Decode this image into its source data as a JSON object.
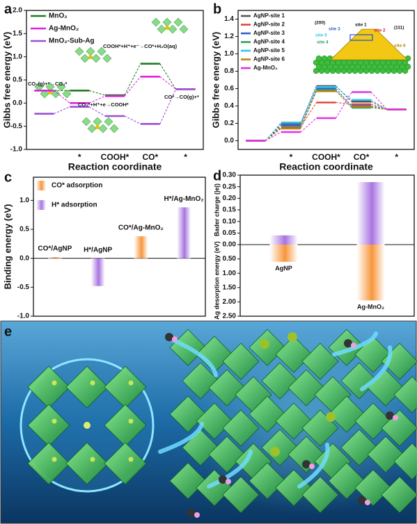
{
  "chart_data": [
    {
      "type": "step",
      "label": "a",
      "ylabel": "Gibbs free energy (eV)",
      "xlabel": "Reaction coordinate",
      "categories": [
        null,
        "*",
        "COOH*",
        "CO*",
        "*"
      ],
      "series": [
        {
          "name": "MnO₂",
          "color": "#1e7d1e",
          "values": [
            0.27,
            0.27,
            0.17,
            0.85,
            0.3
          ]
        },
        {
          "name": "Ag-MnO₂",
          "color": "#e020e0",
          "values": [
            0.27,
            0.0,
            0.15,
            0.57,
            0.3
          ]
        },
        {
          "name": "MnO₂-Sub-Ag",
          "color": "#9b4fd6",
          "values": [
            -0.23,
            -0.08,
            -0.28,
            -0.45,
            0.3
          ]
        }
      ],
      "ylim": [
        -1.0,
        2.0
      ],
      "yticks": [
        {
          "value": -1.0,
          "label": "-1.0"
        },
        -0.5,
        {
          "value": 0.0,
          "label": "0.0"
        },
        0.5,
        {
          "value": 1.0,
          "label": "1.0"
        },
        1.5,
        {
          "value": 2.0,
          "label": "2.0"
        }
      ],
      "annotations": [
        "CO₂(g)+*→CO₂*",
        "CO₂*+H⁺+e→COOH*",
        "COOH*+H⁺+e⁻→CO*+H₂O(aq)",
        "CO*→CO(g)+*"
      ]
    },
    {
      "type": "step",
      "label": "b",
      "ylabel": "Gibbs free energy (eV)",
      "xlabel": "Reaction coordinate",
      "categories": [
        null,
        "*",
        "COOH*",
        "CO*",
        "*"
      ],
      "series": [
        {
          "name": "AgNP-site 1",
          "color": "#555555",
          "values": [
            0.0,
            0.2,
            0.63,
            0.45,
            0.36
          ]
        },
        {
          "name": "AgNP-site 2",
          "color": "#e0463c",
          "values": [
            0.0,
            0.16,
            0.44,
            0.42,
            0.36
          ]
        },
        {
          "name": "AgNP-site 3",
          "color": "#2f5fd0",
          "values": [
            0.0,
            0.18,
            0.6,
            0.4,
            0.36
          ]
        },
        {
          "name": "AgNP-site 4",
          "color": "#2e9e5a",
          "values": [
            0.0,
            0.15,
            0.58,
            0.38,
            0.36
          ]
        },
        {
          "name": "AgNP-site 5",
          "color": "#2fc6e6",
          "values": [
            0.0,
            0.21,
            0.62,
            0.47,
            0.36
          ]
        },
        {
          "name": "AgNP-site 6",
          "color": "#b8860b",
          "values": [
            0.0,
            0.14,
            0.57,
            0.39,
            0.36
          ]
        },
        {
          "name": "Ag-MnO₂",
          "color": "#e62ee6",
          "values": [
            0.0,
            0.1,
            0.26,
            0.56,
            0.36
          ]
        }
      ],
      "ylim": [
        -0.1,
        1.5
      ],
      "yticks": [
        {
          "value": 0.0,
          "label": "0.0"
        },
        0.2,
        0.4,
        0.6,
        0.8,
        {
          "value": 1.0,
          "label": "1.0"
        },
        1.2,
        1.4
      ],
      "annotations": [
        "(200)",
        "site 1",
        "site 2",
        "site 3",
        "site 4",
        "site 5",
        "site 6",
        "(111)"
      ]
    },
    {
      "type": "bar",
      "label": "c",
      "ylabel": "Binding energy (eV)",
      "categories": [
        "CO*/AgNP",
        "H*/AgNP",
        "CO*/Ag-MnO₂",
        "H*/Ag-MnO₂"
      ],
      "series": [
        {
          "name": "CO* adsorption",
          "color": "#f7963c",
          "values": [
            0.02,
            null,
            0.38,
            null
          ]
        },
        {
          "name": "H* adsorption",
          "color": "#a874e0",
          "values": [
            null,
            -0.48,
            null,
            0.88
          ]
        }
      ],
      "ylim": [
        -1.0,
        1.4
      ],
      "yticks": [
        {
          "value": -1.0,
          "label": "-1.0"
        },
        -0.5,
        {
          "value": 0.0,
          "label": "0.0"
        },
        0.5,
        {
          "value": 1.0,
          "label": "1.0"
        }
      ]
    },
    {
      "type": "bar",
      "label": "d",
      "ylabel": "Bader charge (|e|)",
      "y2label": "Ag desorption energy (eV)",
      "categories": [
        "AgNP",
        "Ag-MnO₂"
      ],
      "series": [
        {
          "color": "#a874e0",
          "values": [
            0.04,
            0.27
          ]
        },
        {
          "color": "#f7963c",
          "values": [
            0.6,
            1.95
          ],
          "axis": "y2"
        }
      ],
      "ylim": [
        0,
        0.3
      ],
      "yticks": [
        {
          "value": 0,
          "label": "0.00"
        },
        {
          "value": 0.05,
          "label": "0.05"
        },
        {
          "value": 0.1,
          "label": "0.10"
        },
        {
          "value": 0.15,
          "label": "0.15"
        },
        {
          "value": 0.2,
          "label": "0.20"
        },
        {
          "value": 0.25,
          "label": "0.25"
        },
        {
          "value": 0.3,
          "label": "0.30"
        }
      ],
      "y2lim": [
        0,
        2.5
      ],
      "y2ticks": [
        {
          "value": 0.5,
          "label": "0.50"
        },
        {
          "value": 1.0,
          "label": "1.00"
        },
        {
          "value": 1.5,
          "label": "1.50"
        },
        {
          "value": 2.0,
          "label": "2.00"
        },
        {
          "value": 2.5,
          "label": "2.50"
        }
      ]
    }
  ],
  "illustration": {
    "label": "e"
  }
}
